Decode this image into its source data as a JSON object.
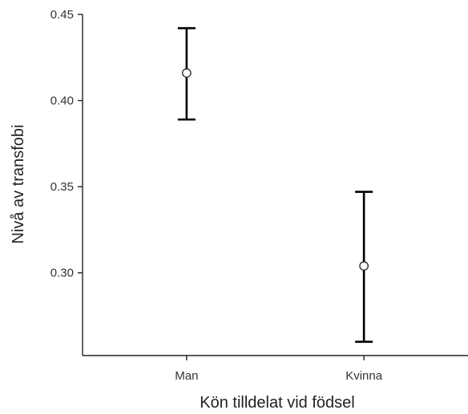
{
  "chart_data": {
    "type": "scatter",
    "xlabel": "Kön tilldelat vid födsel",
    "ylabel": "Nivå av transfobi",
    "categories": [
      "Man",
      "Kvinna"
    ],
    "points": [
      {
        "category": "Man",
        "mean": 0.416,
        "lower": 0.389,
        "upper": 0.442
      },
      {
        "category": "Kvinna",
        "mean": 0.304,
        "lower": 0.26,
        "upper": 0.347
      }
    ],
    "y_ticks": [
      "0.30",
      "0.35",
      "0.40",
      "0.45"
    ],
    "ylim": [
      0.252,
      0.45
    ],
    "grid": false,
    "legend": "none"
  }
}
